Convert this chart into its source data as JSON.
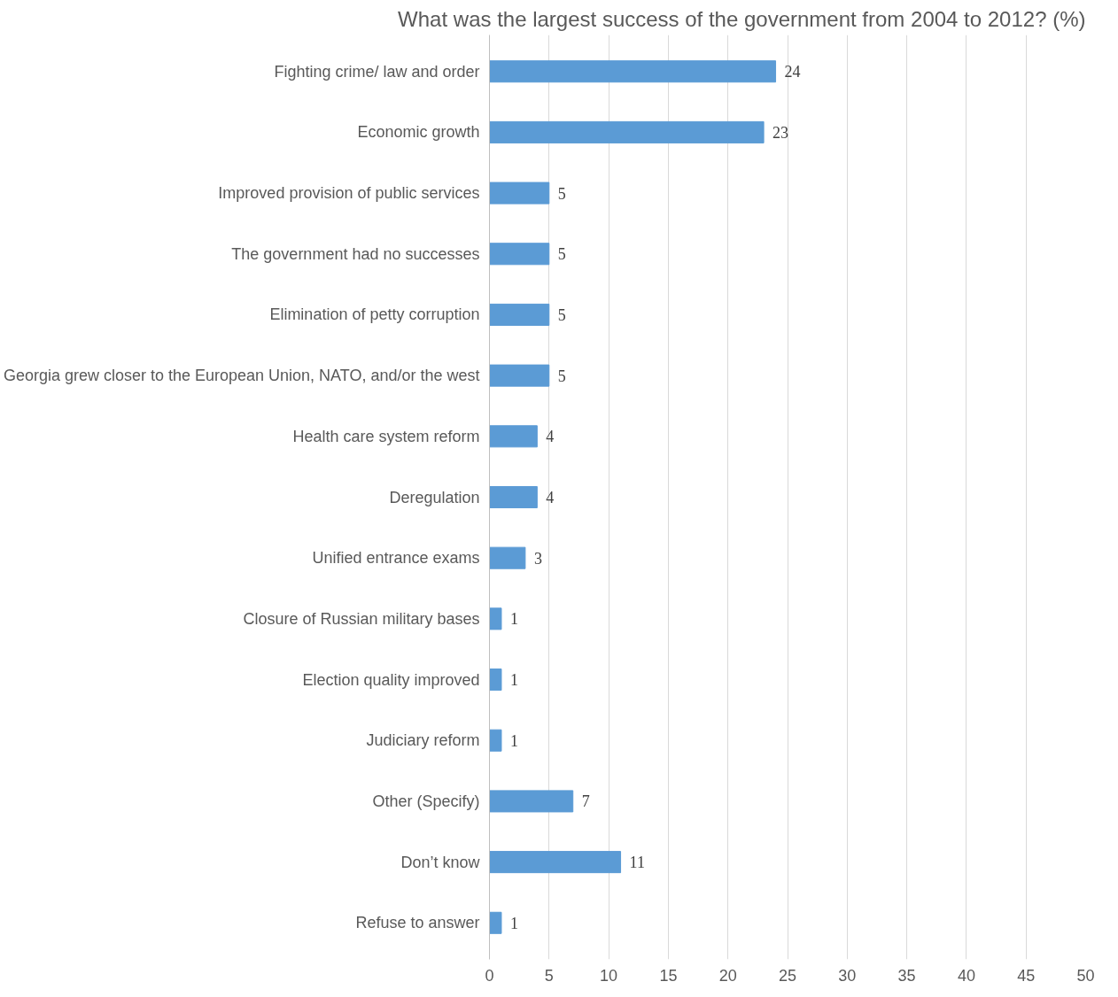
{
  "chart_data": {
    "type": "bar",
    "orientation": "horizontal",
    "title": "What was the largest success of the government from 2004 to 2012? (%)",
    "categories": [
      "Fighting crime/ law and order",
      "Economic growth",
      "Improved provision of public services",
      "The government had no successes",
      "Elimination of petty corruption",
      "Georgia grew closer to the European Union, NATO, and/or the west",
      "Health care system reform",
      "Deregulation",
      "Unified entrance exams",
      "Closure of Russian military bases",
      "Election quality improved",
      "Judiciary reform",
      "Other (Specify)",
      "Don’t know",
      "Refuse to answer"
    ],
    "values": [
      24,
      23,
      5,
      5,
      5,
      5,
      4,
      4,
      3,
      1,
      1,
      1,
      7,
      11,
      1
    ],
    "color": "#5b9bd5",
    "data_labels": true,
    "grid": "x",
    "xlim": [
      0,
      50
    ],
    "xticks": [
      0,
      5,
      10,
      15,
      20,
      25,
      30,
      35,
      40,
      45,
      50
    ]
  }
}
